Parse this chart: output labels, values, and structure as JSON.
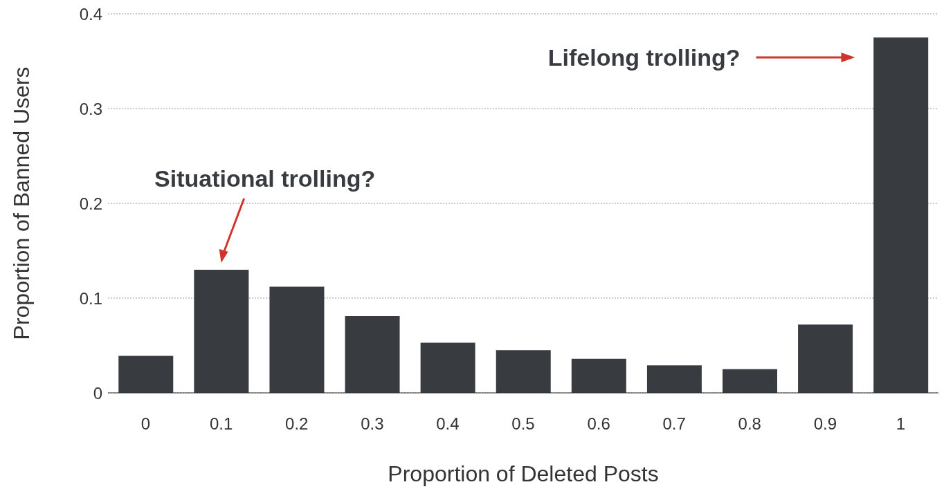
{
  "chart_data": {
    "type": "bar",
    "xlabel": "Proportion of Deleted Posts",
    "ylabel": "Proportion of Banned Users",
    "categories": [
      "0",
      "0.1",
      "0.2",
      "0.3",
      "0.4",
      "0.5",
      "0.6",
      "0.7",
      "0.8",
      "0.9",
      "1"
    ],
    "values": [
      0.039,
      0.13,
      0.112,
      0.081,
      0.053,
      0.045,
      0.036,
      0.029,
      0.025,
      0.072,
      0.375
    ],
    "color": "#383b40",
    "ylim": [
      0,
      0.4
    ],
    "yticks": [
      0,
      0.1,
      0.2,
      0.3,
      0.4
    ],
    "grid": "y",
    "annotations": [
      "Situational trolling?",
      "Lifelong trolling?"
    ]
  }
}
